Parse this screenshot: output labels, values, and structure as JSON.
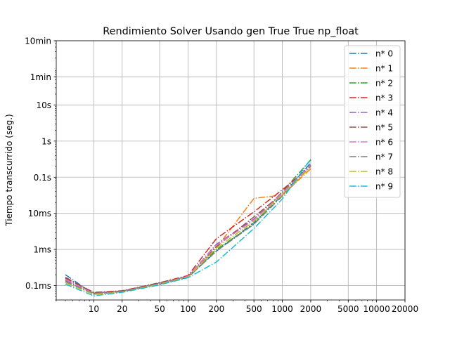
{
  "chart_data": {
    "type": "line",
    "title": "Rendimiento  Solver Usando gen True True np_float",
    "xlabel": "",
    "ylabel": "Tiempo transcurrido (seg.)",
    "x_scale": "log",
    "y_scale": "log",
    "xlim": [
      4.0,
      20000
    ],
    "ylim": [
      4e-05,
      600
    ],
    "grid": true,
    "legend_position": "top-right",
    "x_ticks": [
      {
        "value": 10,
        "label": "10"
      },
      {
        "value": 20,
        "label": "20"
      },
      {
        "value": 50,
        "label": "50"
      },
      {
        "value": 100,
        "label": "100"
      },
      {
        "value": 200,
        "label": "200"
      },
      {
        "value": 500,
        "label": "500"
      },
      {
        "value": 1000,
        "label": "1000"
      },
      {
        "value": 2000,
        "label": "2000"
      },
      {
        "value": 5000,
        "label": "5000"
      },
      {
        "value": 10000,
        "label": "10000"
      },
      {
        "value": 20000,
        "label": "20000"
      }
    ],
    "y_ticks": [
      {
        "value": 0.0001,
        "label": "0.1ms"
      },
      {
        "value": 0.001,
        "label": "1ms"
      },
      {
        "value": 0.01,
        "label": "10ms"
      },
      {
        "value": 0.1,
        "label": "0.1s"
      },
      {
        "value": 1,
        "label": "1s"
      },
      {
        "value": 10,
        "label": "10s"
      },
      {
        "value": 60,
        "label": "1min"
      },
      {
        "value": 600,
        "label": "10min"
      }
    ],
    "x": [
      5,
      10,
      20,
      50,
      100,
      200,
      500,
      1000,
      2000
    ],
    "series": [
      {
        "name": "n* 0",
        "color": "#1f77b4",
        "values": [
          0.0002,
          5.8e-05,
          6.8e-05,
          0.00011,
          0.00017,
          0.0009,
          0.0055,
          0.032,
          0.25
        ]
      },
      {
        "name": "n* 1",
        "color": "#ff7f0e",
        "values": [
          0.00015,
          6e-05,
          6.8e-05,
          0.00011,
          0.00018,
          0.0011,
          0.026,
          0.032,
          0.17
        ]
      },
      {
        "name": "n* 2",
        "color": "#2ca02c",
        "values": [
          0.00013,
          6.2e-05,
          7e-05,
          0.000115,
          0.00018,
          0.001,
          0.005,
          0.04,
          0.3
        ]
      },
      {
        "name": "n* 3",
        "color": "#d62728",
        "values": [
          0.00016,
          6.5e-05,
          7.2e-05,
          0.00012,
          0.00019,
          0.002,
          0.011,
          0.045,
          0.2
        ]
      },
      {
        "name": "n* 4",
        "color": "#9467bd",
        "values": [
          0.00014,
          6e-05,
          7e-05,
          0.000115,
          0.00018,
          0.0014,
          0.007,
          0.038,
          0.22
        ]
      },
      {
        "name": "n* 5",
        "color": "#8c564b",
        "values": [
          0.00017,
          6.3e-05,
          7e-05,
          0.00012,
          0.00018,
          0.0012,
          0.008,
          0.035,
          0.2
        ]
      },
      {
        "name": "n* 6",
        "color": "#e377c2",
        "values": [
          0.00015,
          6e-05,
          6.8e-05,
          0.000112,
          0.00018,
          0.0013,
          0.0065,
          0.036,
          0.21
        ]
      },
      {
        "name": "n* 7",
        "color": "#7f7f7f",
        "values": [
          0.00013,
          5.8e-05,
          6.7e-05,
          0.00011,
          0.00017,
          0.0009,
          0.005,
          0.03,
          0.2
        ]
      },
      {
        "name": "n* 8",
        "color": "#bcbd22",
        "values": [
          0.00012,
          5.7e-05,
          6.6e-05,
          0.00011,
          0.00017,
          0.0011,
          0.006,
          0.033,
          0.19
        ]
      },
      {
        "name": "n* 9",
        "color": "#17becf",
        "values": [
          0.00011,
          5.2e-05,
          6.5e-05,
          0.000105,
          0.000165,
          0.00045,
          0.0038,
          0.025,
          0.32
        ]
      }
    ]
  }
}
